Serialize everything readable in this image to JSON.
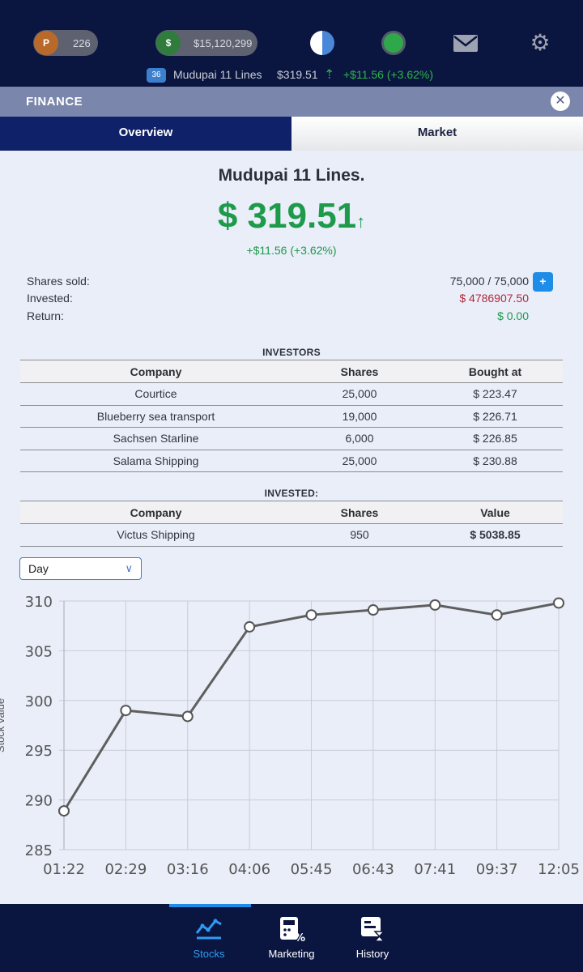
{
  "topbar": {
    "points_value": "226",
    "points_icon": "P",
    "money_value": "$15,120,299",
    "money_icon": "$",
    "icons": [
      "pie-progress-icon",
      "status-dot-icon",
      "mail-icon",
      "gear-icon"
    ]
  },
  "ticker": {
    "badge": "36",
    "name": "Mudupai 11 Lines",
    "price": "$319.51",
    "change": "+$11.56  (+3.62%)"
  },
  "finance": {
    "title": "FINANCE",
    "tabs": [
      {
        "label": "Overview",
        "active": true
      },
      {
        "label": "Market",
        "active": false
      }
    ]
  },
  "stock": {
    "name": "Mudupai 11 Lines.",
    "price": "$ 319.51",
    "arrow": "↑",
    "change": "+$11.56   (+3.62%)"
  },
  "summary": {
    "shares_sold_label": "Shares sold:",
    "shares_sold_value": "75,000 / 75,000",
    "invested_label": "Invested:",
    "invested_value": "$ 4786907.50",
    "return_label": "Return:",
    "return_value": "$ 0.00",
    "plus_label": "+"
  },
  "investors": {
    "title": "INVESTORS",
    "headers": [
      "Company",
      "Shares",
      "Bought at"
    ],
    "rows": [
      [
        "Courtice",
        "25,000",
        "$ 223.47"
      ],
      [
        "Blueberry sea transport",
        "19,000",
        "$ 226.71"
      ],
      [
        "Sachsen Starline",
        "6,000",
        "$ 226.85"
      ],
      [
        "Salama Shipping",
        "25,000",
        "$ 230.88"
      ]
    ]
  },
  "invested": {
    "title": "INVESTED:",
    "headers": [
      "Company",
      "Shares",
      "Value"
    ],
    "rows": [
      [
        "Victus Shipping",
        "950",
        "$ 5038.85"
      ]
    ]
  },
  "period_select": {
    "value": "Day"
  },
  "chart_data": {
    "type": "line",
    "x": [
      "01:22",
      "02:29",
      "03:16",
      "04:06",
      "05:45",
      "06:43",
      "07:41",
      "09:37",
      "12:05"
    ],
    "values": [
      288.9,
      299.0,
      298.4,
      307.4,
      308.6,
      309.1,
      309.6,
      308.6,
      309.8
    ],
    "ylabel": "Stock value",
    "ylim": [
      285,
      310
    ],
    "yticks": [
      285,
      290,
      295,
      300,
      305,
      310
    ],
    "grid": true,
    "line_color": "#5f5f5f"
  },
  "bottom_nav": {
    "items": [
      {
        "label": "Stocks",
        "icon": "stocks-chart-icon",
        "active": true
      },
      {
        "label": "Marketing",
        "icon": "marketing-icon",
        "active": false
      },
      {
        "label": "History",
        "icon": "history-icon",
        "active": false
      }
    ]
  }
}
